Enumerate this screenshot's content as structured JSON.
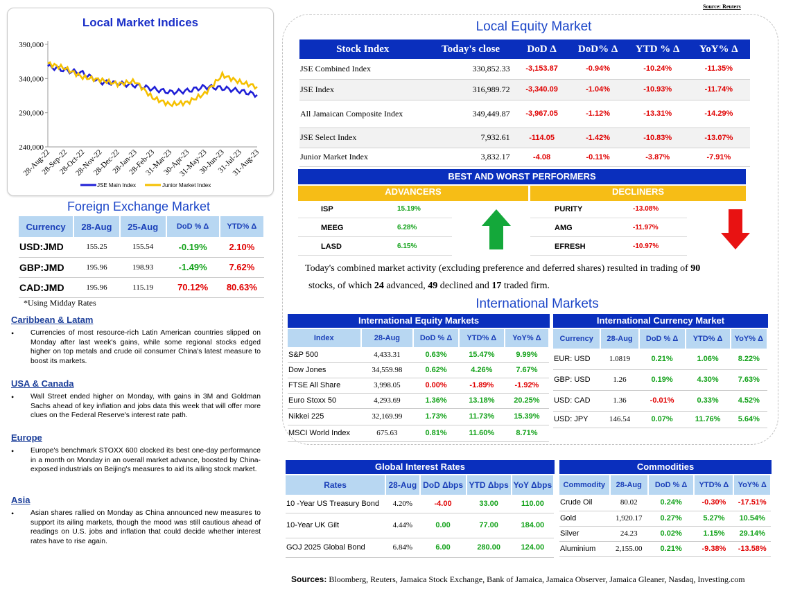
{
  "source_top": "Source: Reuters",
  "chart": {
    "title": "Local Market Indices",
    "y_ticks": [
      "390,000",
      "340,000",
      "290,000",
      "240,000"
    ],
    "x_ticks": [
      "28-Aug-22",
      "28-Sep-22",
      "28-Oct-22",
      "28-Nov-22",
      "28-Dec-22",
      "28-Jan-23",
      "28-Feb-23",
      "31-Mar-23",
      "30-Apr-23",
      "31-May-23",
      "30-Jun-23",
      "31-Jul-23",
      "31-Aug-23"
    ],
    "legend": [
      "JSE Main Index",
      "Junior Market Index"
    ],
    "colors": {
      "main": "#1f1fd6",
      "junior": "#f5c000"
    }
  },
  "chart_data": {
    "type": "line",
    "title": "Local Market Indices",
    "xlabel": "",
    "ylabel": "",
    "ylim": [
      240000,
      390000
    ],
    "categories": [
      "28-Aug-22",
      "28-Sep-22",
      "28-Oct-22",
      "28-Nov-22",
      "28-Dec-22",
      "28-Jan-23",
      "28-Feb-23",
      "31-Mar-23",
      "30-Apr-23",
      "31-May-23",
      "30-Jun-23",
      "31-Jul-23",
      "31-Aug-23"
    ],
    "series": [
      {
        "name": "JSE Main Index",
        "values": [
          358000,
          352000,
          348000,
          335000,
          333000,
          330000,
          325000,
          320000,
          322000,
          328000,
          326000,
          322000,
          316000
        ]
      },
      {
        "name": "Junior Market Index",
        "values": [
          362000,
          355000,
          342000,
          338000,
          332000,
          336000,
          312000,
          302000,
          305000,
          318000,
          345000,
          335000,
          328000
        ]
      }
    ],
    "legend": "bottom"
  },
  "fx": {
    "title": "Foreign Exchange Market",
    "headers": [
      "Currency",
      "28-Aug",
      "25-Aug",
      "DoD % Δ",
      "YTD% Δ"
    ],
    "rows": [
      {
        "c": "USD:JMD",
        "a": "155.25",
        "b": "155.54",
        "d": "-0.19%",
        "y": "2.10%"
      },
      {
        "c": "GBP:JMD",
        "a": "195.96",
        "b": "198.93",
        "d": "-1.49%",
        "y": "7.62%"
      },
      {
        "c": "CAD:JMD",
        "a": "195.96",
        "b": "115.19",
        "d": "70.12%",
        "y": "80.63%"
      }
    ],
    "note": "*Using Midday Rates"
  },
  "news": [
    {
      "head": "Caribbean & Latam",
      "text": "Currencies of most resource-rich Latin American countries slipped on Monday after last week's gains, while some regional stocks edged higher on top metals and crude oil consumer China's latest measure to boost its markets."
    },
    {
      "head": "USA & Canada",
      "text": "Wall Street ended higher on Monday, with gains in 3M and Goldman Sachs ahead of key inflation and jobs data this week that will offer more clues on the Federal Reserve's interest rate path."
    },
    {
      "head": "Europe",
      "text": "Europe's benchmark STOXX 600 clocked its best one-day performance in a month on Monday in an overall market advance, boosted by China-exposed industrials on Beijing's measures to aid its ailing stock market."
    },
    {
      "head": "Asia",
      "text": "Asian shares rallied on Monday as China announced new measures to support its ailing markets, though the mood was still cautious ahead of readings on U.S. jobs and inflation that could decide whether interest rates have to rise again."
    }
  ],
  "equity": {
    "title": "Local Equity Market",
    "headers": [
      "Stock Index",
      "Today's close",
      "DoD  Δ",
      "DoD% Δ",
      "YTD % Δ",
      "YoY% Δ"
    ],
    "rows": [
      [
        "JSE Combined Index",
        "330,852.33",
        "-3,153.87",
        "-0.94%",
        "-10.24%",
        "-11.35%"
      ],
      [
        "JSE Index",
        "316,989.72",
        "-3,340.09",
        "-1.04%",
        "-10.93%",
        "-11.74%"
      ],
      [
        "All Jamaican Composite Index",
        "349,449.87",
        "-3,967.05",
        "-1.12%",
        "-13.31%",
        "-14.29%"
      ],
      [
        "JSE Select Index",
        "7,932.61",
        "-114.05",
        "-1.42%",
        "-10.83%",
        "-13.07%"
      ],
      [
        "Junior Market Index",
        "3,832.17",
        "-4.08",
        "-0.11%",
        "-3.87%",
        "-7.91%"
      ]
    ]
  },
  "performers": {
    "title": "BEST AND WORST PERFORMERS",
    "adv_label": "ADVANCERS",
    "dec_label": "DECLINERS",
    "advancers": [
      [
        "ISP",
        "15.19%"
      ],
      [
        "MEEG",
        "6.28%"
      ],
      [
        "LASD",
        "6.15%"
      ]
    ],
    "decliners": [
      [
        "PURITY",
        "-13.08%"
      ],
      [
        "AMG",
        "-11.97%"
      ],
      [
        "EFRESH",
        "-10.97%"
      ]
    ]
  },
  "summary": {
    "p1": "Today's combined market activity (excluding preference and deferred shares) resulted in trading of ",
    "n1": "90",
    "p2": "stocks, of which ",
    "n2": "24",
    "p3": " advanced, ",
    "n3": "49",
    "p4": " declined and ",
    "n4": "17",
    "p5": " traded firm."
  },
  "intl": {
    "title": "International Markets",
    "equity": {
      "title": "International Equity Markets",
      "headers": [
        "Index",
        "28-Aug",
        "DoD % Δ",
        "YTD% Δ",
        "YoY% Δ"
      ],
      "rows": [
        [
          "S&P 500",
          "4,433.31",
          "0.63%",
          "15.47%",
          "9.99%"
        ],
        [
          "Dow Jones",
          "34,559.98",
          "0.62%",
          "4.26%",
          "7.67%"
        ],
        [
          "FTSE All Share",
          "3,998.05",
          "0.00%",
          "-1.89%",
          "-1.92%"
        ],
        [
          "Euro Stoxx 50",
          "4,293.69",
          "1.36%",
          "13.18%",
          "20.25%"
        ],
        [
          "Nikkei 225",
          "32,169.99",
          "1.73%",
          "11.73%",
          "15.39%"
        ],
        [
          "MSCI World Index",
          "675.63",
          "0.81%",
          "11.60%",
          "8.71%"
        ]
      ]
    },
    "currency": {
      "title": "International Currency Market",
      "headers": [
        "Currency",
        "28-Aug",
        "DoD % Δ",
        "YTD% Δ",
        "YoY% Δ"
      ],
      "rows": [
        [
          "EUR: USD",
          "1.0819",
          "0.21%",
          "1.06%",
          "8.22%"
        ],
        [
          "GBP: USD",
          "1.26",
          "0.19%",
          "4.30%",
          "7.63%"
        ],
        [
          "USD: CAD",
          "1.36",
          "-0.01%",
          "0.33%",
          "4.52%"
        ],
        [
          "USD: JPY",
          "146.54",
          "0.07%",
          "11.76%",
          "5.64%"
        ]
      ]
    },
    "rates": {
      "title": "Global Interest Rates",
      "headers": [
        "Rates",
        "28-Aug",
        "DoD Δbps",
        "YTD Δbps",
        "YoY Δbps"
      ],
      "rows": [
        [
          "10 -Year US Treasury Bond",
          "4.20%",
          "-4.00",
          "33.00",
          "110.00"
        ],
        [
          "10-Year UK Gilt",
          "4.44%",
          "0.00",
          "77.00",
          "184.00"
        ],
        [
          "GOJ 2025 Global Bond",
          "6.84%",
          "6.00",
          "280.00",
          "124.00"
        ]
      ]
    },
    "commodities": {
      "title": "Commodities",
      "headers": [
        "Commodity",
        "28-Aug",
        "DoD % Δ",
        "YTD% Δ",
        "YoY% Δ"
      ],
      "rows": [
        [
          "Crude Oil",
          "80.02",
          "0.24%",
          "-0.30%",
          "-17.51%"
        ],
        [
          "Gold",
          "1,920.17",
          "0.27%",
          "5.27%",
          "10.54%"
        ],
        [
          "Silver",
          "24.23",
          "0.02%",
          "1.15%",
          "29.14%"
        ],
        [
          "Aluminium",
          "2,155.00",
          "0.21%",
          "-9.38%",
          "-13.58%"
        ]
      ]
    }
  },
  "sources": {
    "label": "Sources:",
    "text": " Bloomberg, Reuters, Jamaica Stock Exchange, Bank of Jamaica, Jamaica Observer, Jamaica Gleaner, Nasdaq, Investing.com"
  }
}
